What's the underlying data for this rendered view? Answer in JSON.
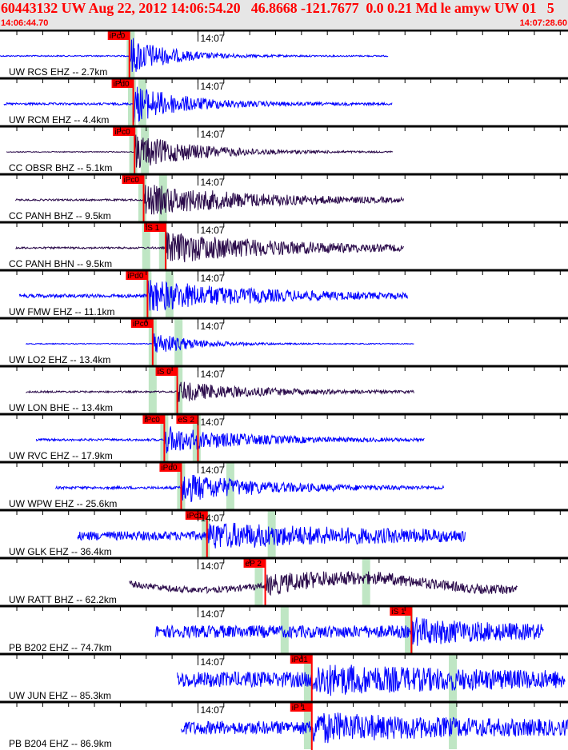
{
  "header": {
    "title": "60443132 UW Aug 22, 2012 14:06:54.20   46.8668 -121.7677  0.0 0.21 Md le amyw UW 01   5",
    "start_time": "14:06:44.70",
    "end_time": "14:07:28.60",
    "minute_label": "14:07",
    "minute_offset_s": 15.3,
    "span_s": 43.9
  },
  "colors": {
    "header_text": "#ff0000",
    "header_bg": "#e6e6e6",
    "ehz": "#0000ff",
    "bh": "#2a0a4a",
    "pick": "#ff0000",
    "window": "#bfe6c4"
  },
  "rows": [
    {
      "label": "UW RCS EHZ -- 2.7km",
      "kind": "ehz",
      "trace": [
        0,
        30.0
      ],
      "picks": [
        {
          "label": "iPc0",
          "t": 10.0
        }
      ],
      "windows": [
        10.1
      ],
      "amp": 0.9,
      "noise": 0.03,
      "decay": 3
    },
    {
      "label": "UW RCM EHZ -- 4.4km",
      "kind": "ehz",
      "trace": [
        0.3,
        30.3
      ],
      "picks": [
        {
          "label": "iPd0",
          "t": 10.3
        }
      ],
      "windows": [
        10.2,
        11.0
      ],
      "amp": 0.85,
      "noise": 0.05,
      "decay": 4
    },
    {
      "label": "CC OBSR BHZ -- 5.1km",
      "kind": "bh",
      "trace": [
        0.5,
        30.4
      ],
      "picks": [
        {
          "label": "iPc0",
          "t": 10.4
        }
      ],
      "windows": [
        10.3,
        11.2
      ],
      "amp": 0.8,
      "noise": 0.02,
      "decay": 5
    },
    {
      "label": "CC PANH BHZ -- 9.5km",
      "kind": "bh",
      "trace": [
        1.2,
        31.2
      ],
      "picks": [
        {
          "label": "iPc0",
          "t": 11.1
        }
      ],
      "windows": [
        11.0,
        12.6
      ],
      "amp": 0.7,
      "noise": 0.04,
      "decay": 9
    },
    {
      "label": "CC PANH BHN -- 9.5km",
      "kind": "bh",
      "trace": [
        1.2,
        31.2
      ],
      "picks": [
        {
          "label": "iS 1",
          "t": 12.8
        }
      ],
      "windows": [
        11.3,
        12.6
      ],
      "amp": 0.7,
      "noise": 0.04,
      "decay": 10
    },
    {
      "label": "UW FMW EHZ -- 11.1km",
      "kind": "ehz",
      "trace": [
        1.5,
        31.5
      ],
      "picks": [
        {
          "label": "iPd0",
          "t": 11.4
        }
      ],
      "windows": [
        11.4,
        13.1
      ],
      "amp": 0.7,
      "noise": 0.08,
      "decay": 8
    },
    {
      "label": "UW LO2 EHZ -- 13.4km",
      "kind": "ehz",
      "trace": [
        2.0,
        32.0
      ],
      "picks": [
        {
          "label": "iPc0",
          "t": 11.8
        }
      ],
      "windows": [
        11.8,
        13.8
      ],
      "amp": 0.55,
      "noise": 0.02,
      "decay": 3
    },
    {
      "label": "UW LON BHE -- 13.4km",
      "kind": "bh",
      "trace": [
        2.0,
        32.0
      ],
      "picks": [
        {
          "label": "iS 0",
          "t": 13.7
        }
      ],
      "windows": [
        11.8,
        13.8
      ],
      "amp": 0.45,
      "noise": 0.04,
      "decay": 6
    },
    {
      "label": "UW RVC EHZ -- 17.9km",
      "kind": "ehz",
      "trace": [
        2.8,
        32.8
      ],
      "picks": [
        {
          "label": "iPc0",
          "t": 12.7
        },
        {
          "label": "eS 2",
          "t": 15.3
        }
      ],
      "windows": [
        12.7,
        15.2
      ],
      "amp": 0.6,
      "noise": 0.05,
      "decay": 6
    },
    {
      "label": "UW WPW EHZ -- 25.6km",
      "kind": "ehz",
      "trace": [
        4.3,
        34.3
      ],
      "picks": [
        {
          "label": "iPd0",
          "t": 14.0
        }
      ],
      "windows": [
        14.0,
        17.8
      ],
      "amp": 0.65,
      "noise": 0.06,
      "decay": 6
    },
    {
      "label": "UW GLK EHZ -- 36.4km",
      "kind": "ehz",
      "trace": [
        6.0,
        36.0
      ],
      "picks": [
        {
          "label": "iPc1",
          "t": 16.0
        }
      ],
      "windows": [
        15.9,
        21.0
      ],
      "amp": 0.45,
      "noise": 0.2,
      "decay": 12
    },
    {
      "label": "UW RATT BHZ -- 62.2km",
      "kind": "bh",
      "trace": [
        10.0,
        40.0
      ],
      "picks": [
        {
          "label": "eP 2",
          "t": 20.5
        }
      ],
      "windows": [
        20.0,
        28.3
      ],
      "amp": 0.35,
      "noise": 0.14,
      "decay": 10,
      "swell": true
    },
    {
      "label": "PB B202 EHZ -- 74.7km",
      "kind": "ehz",
      "trace": [
        12.0,
        42.0
      ],
      "picks": [
        {
          "label": "iS 1",
          "t": 31.8
        }
      ],
      "windows": [
        22.0,
        31.6
      ],
      "amp": 0.4,
      "noise": 0.28,
      "decay": 6
    },
    {
      "label": "UW JUN EHZ -- 85.3km",
      "kind": "ehz",
      "trace": [
        13.7,
        43.7
      ],
      "picks": [
        {
          "label": "iPd1",
          "t": 24.1
        }
      ],
      "windows": [
        23.8,
        35.0
      ],
      "amp": 0.45,
      "noise": 0.35,
      "decay": 10
    },
    {
      "label": "PB B204 EHZ -- 86.9km",
      "kind": "ehz",
      "trace": [
        14.0,
        43.9
      ],
      "picks": [
        {
          "label": "iP 1",
          "t": 24.1
        }
      ],
      "windows": [
        23.8,
        35.0
      ],
      "amp": 0.45,
      "noise": 0.3,
      "decay": 10
    }
  ]
}
